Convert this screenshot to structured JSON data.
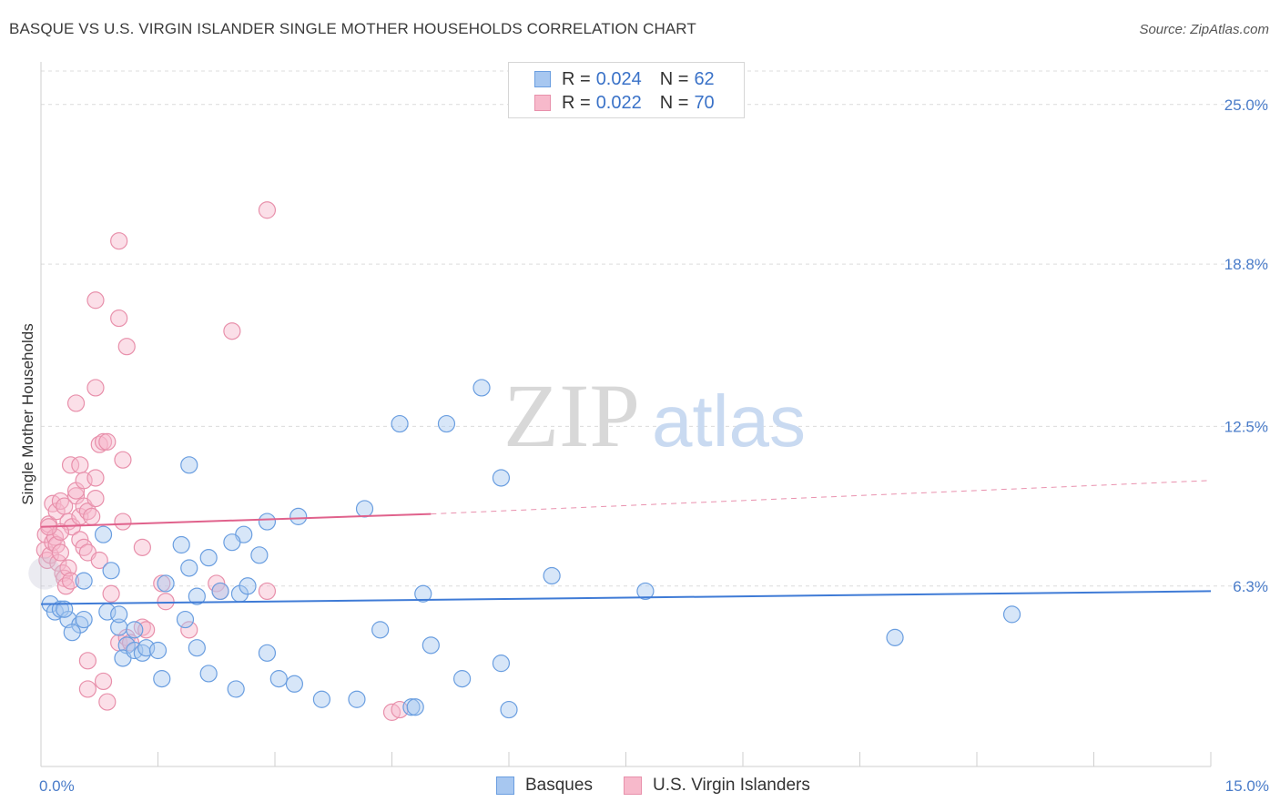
{
  "header": {
    "title": "BASQUE VS U.S. VIRGIN ISLANDER SINGLE MOTHER HOUSEHOLDS CORRELATION CHART",
    "source": "Source: ZipAtlas.com"
  },
  "watermark": {
    "zip": "ZIP",
    "atlas": "atlas"
  },
  "legend": {
    "rows": [
      {
        "r_label": "R =",
        "r_value": "0.024",
        "n_label": "N =",
        "n_value": "62",
        "color": "#a7c7f0",
        "border": "#6a9ee0"
      },
      {
        "r_label": "R =",
        "r_value": "0.022",
        "n_label": "N =",
        "n_value": "70",
        "color": "#f7b9cb",
        "border": "#e890ab"
      }
    ]
  },
  "bottom_legend": [
    {
      "label": "Basques",
      "color": "#a7c7f0",
      "border": "#6a9ee0"
    },
    {
      "label": "U.S. Virgin Islanders",
      "color": "#f7b9cb",
      "border": "#e890ab"
    }
  ],
  "chart_data": {
    "type": "scatter",
    "title": "BASQUE VS U.S. VIRGIN ISLANDER SINGLE MOTHER HOUSEHOLDS CORRELATION CHART",
    "xlabel": "",
    "ylabel": "Single Mother Households",
    "xlim": [
      0,
      15
    ],
    "ylim": [
      0,
      26.3
    ],
    "x_tick_labels": [
      "0.0%",
      "15.0%"
    ],
    "y_ticks": [
      6.3,
      12.5,
      18.8,
      25.0
    ],
    "y_tick_labels": [
      "6.3%",
      "12.5%",
      "18.8%",
      "25.0%"
    ],
    "grid": "horizontal dashed",
    "legend_placement": "top-center",
    "series": [
      {
        "name": "Basques",
        "color": "#a7c7f0",
        "stroke": "#6a9ee0",
        "trend": {
          "x": [
            0,
            15
          ],
          "y": [
            5.6,
            6.1
          ],
          "color": "#3f7bd6"
        },
        "points": [
          [
            0.12,
            5.6
          ],
          [
            0.18,
            5.3
          ],
          [
            0.25,
            5.4
          ],
          [
            0.35,
            5.0
          ],
          [
            0.5,
            4.8
          ],
          [
            0.55,
            5.0
          ],
          [
            0.4,
            4.5
          ],
          [
            0.85,
            5.3
          ],
          [
            1.0,
            4.7
          ],
          [
            1.2,
            4.6
          ],
          [
            1.1,
            4.0
          ],
          [
            1.05,
            3.5
          ],
          [
            1.2,
            3.8
          ],
          [
            1.3,
            3.7
          ],
          [
            1.35,
            3.9
          ],
          [
            1.5,
            3.8
          ],
          [
            1.0,
            5.2
          ],
          [
            1.85,
            5.0
          ],
          [
            2.0,
            3.9
          ],
          [
            1.55,
            2.7
          ],
          [
            2.15,
            2.9
          ],
          [
            2.5,
            2.3
          ],
          [
            2.9,
            3.7
          ],
          [
            3.05,
            2.7
          ],
          [
            3.25,
            2.5
          ],
          [
            3.6,
            1.9
          ],
          [
            4.05,
            1.9
          ],
          [
            4.35,
            4.6
          ],
          [
            4.75,
            1.6
          ],
          [
            4.8,
            1.6
          ],
          [
            5.0,
            4.0
          ],
          [
            5.4,
            2.7
          ],
          [
            5.9,
            3.3
          ],
          [
            6.0,
            1.5
          ],
          [
            4.9,
            6.0
          ],
          [
            2.0,
            5.9
          ],
          [
            2.3,
            6.1
          ],
          [
            2.55,
            6.0
          ],
          [
            2.65,
            6.3
          ],
          [
            1.6,
            6.4
          ],
          [
            0.9,
            6.9
          ],
          [
            0.55,
            6.5
          ],
          [
            1.9,
            7.0
          ],
          [
            2.15,
            7.4
          ],
          [
            2.8,
            7.5
          ],
          [
            1.8,
            7.9
          ],
          [
            2.6,
            8.3
          ],
          [
            2.45,
            8.0
          ],
          [
            2.9,
            8.8
          ],
          [
            3.3,
            9.0
          ],
          [
            0.8,
            8.3
          ],
          [
            4.15,
            9.3
          ],
          [
            1.9,
            11.0
          ],
          [
            4.6,
            12.6
          ],
          [
            5.2,
            12.6
          ],
          [
            5.65,
            14.0
          ],
          [
            5.9,
            10.5
          ],
          [
            6.55,
            6.7
          ],
          [
            7.75,
            6.1
          ],
          [
            10.95,
            4.3
          ],
          [
            12.45,
            5.2
          ],
          [
            0.3,
            5.4
          ]
        ]
      },
      {
        "name": "U.S. Virgin Islanders",
        "color": "#f7b9cb",
        "stroke": "#e890ab",
        "trend": {
          "x": [
            0,
            5.0
          ],
          "y": [
            8.6,
            9.1
          ],
          "dash_to": [
            15,
            10.4
          ],
          "color": "#e0628c"
        },
        "points": [
          [
            0.05,
            7.7
          ],
          [
            0.06,
            8.3
          ],
          [
            0.08,
            7.3
          ],
          [
            0.1,
            8.7
          ],
          [
            0.12,
            7.5
          ],
          [
            0.15,
            8.0
          ],
          [
            0.18,
            8.2
          ],
          [
            0.2,
            7.9
          ],
          [
            0.22,
            7.2
          ],
          [
            0.25,
            7.6
          ],
          [
            0.28,
            6.8
          ],
          [
            0.3,
            6.6
          ],
          [
            0.32,
            6.3
          ],
          [
            0.35,
            7.0
          ],
          [
            0.38,
            6.5
          ],
          [
            0.15,
            9.5
          ],
          [
            0.2,
            9.2
          ],
          [
            0.25,
            9.6
          ],
          [
            0.3,
            9.4
          ],
          [
            0.35,
            8.8
          ],
          [
            0.4,
            8.6
          ],
          [
            0.45,
            9.8
          ],
          [
            0.5,
            9.0
          ],
          [
            0.55,
            9.4
          ],
          [
            0.6,
            9.2
          ],
          [
            0.65,
            9.0
          ],
          [
            0.45,
            10.0
          ],
          [
            0.5,
            8.1
          ],
          [
            0.55,
            7.8
          ],
          [
            0.6,
            7.6
          ],
          [
            0.38,
            11.0
          ],
          [
            0.5,
            11.0
          ],
          [
            0.55,
            10.4
          ],
          [
            0.7,
            9.7
          ],
          [
            0.75,
            11.8
          ],
          [
            0.8,
            11.9
          ],
          [
            0.85,
            11.9
          ],
          [
            0.7,
            10.5
          ],
          [
            1.05,
            11.2
          ],
          [
            0.25,
            8.4
          ],
          [
            0.75,
            7.3
          ],
          [
            0.9,
            6.0
          ],
          [
            1.05,
            8.8
          ],
          [
            1.3,
            7.8
          ],
          [
            1.55,
            6.4
          ],
          [
            1.6,
            5.7
          ],
          [
            1.9,
            4.6
          ],
          [
            1.0,
            4.1
          ],
          [
            1.1,
            4.3
          ],
          [
            1.3,
            4.7
          ],
          [
            1.15,
            4.1
          ],
          [
            0.6,
            3.4
          ],
          [
            0.6,
            2.3
          ],
          [
            0.8,
            2.6
          ],
          [
            0.85,
            1.8
          ],
          [
            0.45,
            13.4
          ],
          [
            0.7,
            14.0
          ],
          [
            1.1,
            15.6
          ],
          [
            1.0,
            16.7
          ],
          [
            0.7,
            17.4
          ],
          [
            1.0,
            19.7
          ],
          [
            2.45,
            16.2
          ],
          [
            2.9,
            20.9
          ],
          [
            2.25,
            6.4
          ],
          [
            2.3,
            6.1
          ],
          [
            2.9,
            6.1
          ],
          [
            1.35,
            4.6
          ],
          [
            4.5,
            1.4
          ],
          [
            4.6,
            1.5
          ],
          [
            0.1,
            8.6
          ]
        ]
      }
    ]
  }
}
